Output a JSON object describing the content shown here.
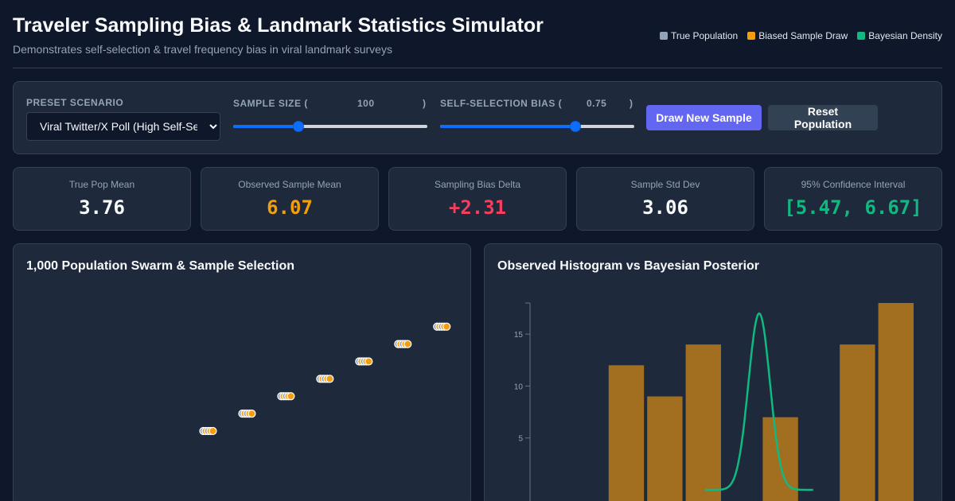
{
  "header": {
    "title": "Traveler Sampling Bias & Landmark Statistics Simulator",
    "subtitle": "Demonstrates self-selection & travel frequency bias in viral landmark surveys"
  },
  "legend": [
    {
      "label": "True Population",
      "color": "#94a3b8"
    },
    {
      "label": "Biased Sample Draw",
      "color": "#f59e0b"
    },
    {
      "label": "Bayesian Density",
      "color": "#10b981"
    }
  ],
  "controls": {
    "preset_label": "PRESET SCENARIO",
    "preset_value": "Viral Twitter/X Poll (High Self-Selection)",
    "sample_size_label": "SAMPLE SIZE (",
    "sample_size_value": "100",
    "sample_size_close": ")",
    "sample_size_fraction": 0.325,
    "bias_label": "SELF-SELECTION BIAS (",
    "bias_value": "0.75",
    "bias_close": ")",
    "bias_fraction": 0.71,
    "draw_button": "Draw New Sample",
    "reset_button": "Reset Population"
  },
  "stats": [
    {
      "label": "True Pop Mean",
      "value": "3.76",
      "color": "#f8fafc"
    },
    {
      "label": "Observed Sample Mean",
      "value": "6.07",
      "color": "#f59e0b"
    },
    {
      "label": "Sampling Bias Delta",
      "value": "+2.31",
      "color": "#f43f5e"
    },
    {
      "label": "Sample Std Dev",
      "value": "3.06",
      "color": "#f8fafc"
    },
    {
      "label": "95% Confidence Interval",
      "value": "[5.47, 6.67]",
      "color": "#10b981"
    }
  ],
  "panels": {
    "swarm_title": "1,000 Population Swarm & Sample Selection",
    "histogram_title": "Observed Histogram vs Bayesian Posterior"
  },
  "chart_data": [
    {
      "type": "scatter",
      "title": "1,000 Population Swarm & Sample Selection",
      "x_range": [
        0,
        10
      ],
      "y_range": [
        0,
        10
      ],
      "clusters": [
        {
          "x": 4.2,
          "y": 0.0
        },
        {
          "x": 5.1,
          "y": 1.25
        },
        {
          "x": 6.0,
          "y": 2.5
        },
        {
          "x": 6.9,
          "y": 3.75
        },
        {
          "x": 7.8,
          "y": 5.0
        },
        {
          "x": 8.7,
          "y": 6.25
        },
        {
          "x": 9.6,
          "y": 7.5
        }
      ]
    },
    {
      "type": "bar",
      "title": "Observed Histogram vs Bayesian Posterior",
      "y_ticks": [
        5,
        10,
        15
      ],
      "ylim": [
        0,
        18
      ],
      "bar_color": "#a16f1f",
      "values": [
        0,
        0,
        12,
        9,
        14,
        0,
        7,
        0,
        14,
        18
      ],
      "series": [
        {
          "type": "line",
          "color": "#10b981",
          "peak_bin": 5.95,
          "peak": 17,
          "width": 0.28
        }
      ]
    }
  ]
}
